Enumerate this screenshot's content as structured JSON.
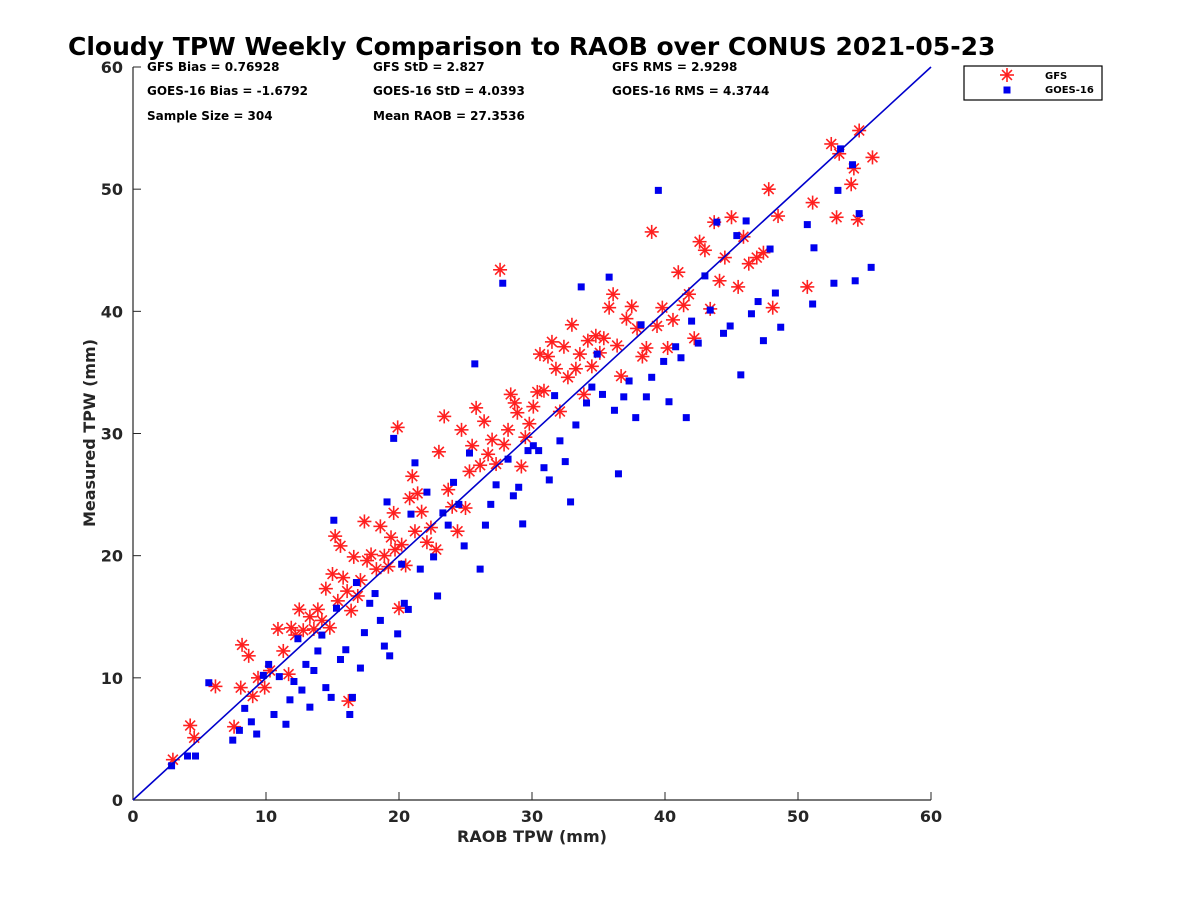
{
  "chart_data": {
    "type": "scatter",
    "title": "Cloudy TPW Weekly Comparison to RAOB over CONUS 2021-05-23",
    "xlabel": "RAOB TPW (mm)",
    "ylabel": "Measured TPW (mm)",
    "xlim": [
      0,
      60
    ],
    "ylim": [
      0,
      60
    ],
    "xticks": [
      "0",
      "10",
      "20",
      "30",
      "40",
      "50",
      "60"
    ],
    "yticks": [
      "0",
      "10",
      "20",
      "30",
      "40",
      "50",
      "60"
    ],
    "grid": false,
    "legend_position": "top-right, outside plot",
    "stats": [
      {
        "text": "GFS Bias = 0.76928"
      },
      {
        "text": "GFS StD = 2.827"
      },
      {
        "text": "GFS RMS = 2.9298"
      },
      {
        "text": "GOES-16 Bias = -1.6792"
      },
      {
        "text": "GOES-16 StD = 4.0393"
      },
      {
        "text": "GOES-16 RMS = 4.3744"
      },
      {
        "text": "Sample Size = 304"
      },
      {
        "text": "Mean RAOB = 27.3536"
      }
    ],
    "reference_line": {
      "x": [
        0,
        60
      ],
      "y": [
        0,
        60
      ],
      "color": "#0000cc"
    },
    "series": [
      {
        "name": "GFS",
        "marker": "asterisk",
        "color": "#ff2020",
        "points": [
          [
            3,
            3.3
          ],
          [
            4.3,
            6.1
          ],
          [
            4.6,
            5.1
          ],
          [
            6.2,
            9.3
          ],
          [
            7.6,
            6
          ],
          [
            8.1,
            9.2
          ],
          [
            8.2,
            12.7
          ],
          [
            8.7,
            11.8
          ],
          [
            9,
            8.5
          ],
          [
            9.4,
            10
          ],
          [
            9.9,
            9.2
          ],
          [
            10.3,
            10.6
          ],
          [
            10.9,
            14
          ],
          [
            11.3,
            12.2
          ],
          [
            11.7,
            10.3
          ],
          [
            11.9,
            14.1
          ],
          [
            12.2,
            13.5
          ],
          [
            12.5,
            15.6
          ],
          [
            12.8,
            13.9
          ],
          [
            13.3,
            15
          ],
          [
            13.6,
            14
          ],
          [
            13.9,
            15.6
          ],
          [
            14.2,
            14.7
          ],
          [
            14.5,
            17.3
          ],
          [
            14.8,
            14.1
          ],
          [
            15,
            18.5
          ],
          [
            15.2,
            21.6
          ],
          [
            15.4,
            16.3
          ],
          [
            15.6,
            20.8
          ],
          [
            15.8,
            18.2
          ],
          [
            16.1,
            17.1
          ],
          [
            16.2,
            8.1
          ],
          [
            16.4,
            15.5
          ],
          [
            16.6,
            19.9
          ],
          [
            16.9,
            16.7
          ],
          [
            17.1,
            18
          ],
          [
            17.4,
            22.8
          ],
          [
            17.6,
            19.6
          ],
          [
            17.9,
            20.1
          ],
          [
            18.3,
            18.9
          ],
          [
            18.6,
            22.4
          ],
          [
            18.9,
            20
          ],
          [
            19.2,
            19.1
          ],
          [
            19.4,
            21.5
          ],
          [
            19.6,
            23.5
          ],
          [
            19.7,
            20.5
          ],
          [
            19.9,
            30.5
          ],
          [
            20,
            15.7
          ],
          [
            20.2,
            20.9
          ],
          [
            20.5,
            19.2
          ],
          [
            20.8,
            24.7
          ],
          [
            21,
            26.5
          ],
          [
            21.2,
            22
          ],
          [
            21.4,
            25.1
          ],
          [
            21.7,
            23.6
          ],
          [
            22.1,
            21.1
          ],
          [
            22.4,
            22.3
          ],
          [
            22.8,
            20.5
          ],
          [
            23,
            28.5
          ],
          [
            23.4,
            31.4
          ],
          [
            23.7,
            25.4
          ],
          [
            24,
            24
          ],
          [
            24.4,
            22
          ],
          [
            24.7,
            30.3
          ],
          [
            25,
            23.9
          ],
          [
            25.3,
            26.9
          ],
          [
            25.5,
            29
          ],
          [
            25.8,
            32.1
          ],
          [
            26.1,
            27.4
          ],
          [
            26.4,
            31
          ],
          [
            26.7,
            28.3
          ],
          [
            27,
            29.5
          ],
          [
            27.3,
            27.5
          ],
          [
            27.6,
            43.4
          ],
          [
            27.9,
            29.1
          ],
          [
            28.2,
            30.3
          ],
          [
            28.4,
            33.2
          ],
          [
            28.7,
            32.5
          ],
          [
            28.9,
            31.7
          ],
          [
            29.2,
            27.3
          ],
          [
            29.5,
            29.7
          ],
          [
            29.8,
            30.8
          ],
          [
            30.1,
            32.2
          ],
          [
            30.4,
            33.4
          ],
          [
            30.6,
            36.5
          ],
          [
            30.9,
            33.5
          ],
          [
            31.2,
            36.3
          ],
          [
            31.5,
            37.5
          ],
          [
            31.8,
            35.3
          ],
          [
            32.1,
            31.8
          ],
          [
            32.4,
            37.1
          ],
          [
            32.7,
            34.6
          ],
          [
            33,
            38.9
          ],
          [
            33.3,
            35.3
          ],
          [
            33.6,
            36.5
          ],
          [
            33.9,
            33.2
          ],
          [
            34.2,
            37.6
          ],
          [
            34.5,
            35.5
          ],
          [
            34.8,
            38
          ],
          [
            35.1,
            36.6
          ],
          [
            35.4,
            37.8
          ],
          [
            35.8,
            40.3
          ],
          [
            36.1,
            41.4
          ],
          [
            36.4,
            37.2
          ],
          [
            36.7,
            34.7
          ],
          [
            37.1,
            39.4
          ],
          [
            37.5,
            40.4
          ],
          [
            37.9,
            38.6
          ],
          [
            38.3,
            36.3
          ],
          [
            38.6,
            37
          ],
          [
            39,
            46.5
          ],
          [
            39.4,
            38.8
          ],
          [
            39.8,
            40.3
          ],
          [
            40.2,
            37
          ],
          [
            40.6,
            39.3
          ],
          [
            41,
            43.2
          ],
          [
            41.4,
            40.5
          ],
          [
            41.8,
            41.4
          ],
          [
            42.2,
            37.8
          ],
          [
            42.6,
            45.7
          ],
          [
            43,
            45
          ],
          [
            43.4,
            40.2
          ],
          [
            43.7,
            47.3
          ],
          [
            44.1,
            42.5
          ],
          [
            44.5,
            44.4
          ],
          [
            45,
            47.7
          ],
          [
            45.5,
            42
          ],
          [
            45.9,
            46.1
          ],
          [
            46.3,
            43.9
          ],
          [
            46.9,
            44.4
          ],
          [
            47.4,
            44.8
          ],
          [
            47.8,
            50
          ],
          [
            48.1,
            40.3
          ],
          [
            48.5,
            47.8
          ],
          [
            50.7,
            42
          ],
          [
            51.1,
            48.9
          ],
          [
            52.5,
            53.7
          ],
          [
            52.9,
            47.7
          ],
          [
            53.1,
            52.9
          ],
          [
            54,
            50.4
          ],
          [
            54.2,
            51.7
          ],
          [
            54.5,
            47.5
          ],
          [
            54.6,
            54.8
          ],
          [
            55.6,
            52.6
          ]
        ]
      },
      {
        "name": "GOES-16",
        "marker": "square",
        "color": "#0000ee",
        "points": [
          [
            2.9,
            2.8
          ],
          [
            4.1,
            3.6
          ],
          [
            4.7,
            3.6
          ],
          [
            5.7,
            9.6
          ],
          [
            7.5,
            4.9
          ],
          [
            8,
            5.7
          ],
          [
            8.4,
            7.5
          ],
          [
            8.9,
            6.4
          ],
          [
            9.3,
            5.4
          ],
          [
            9.8,
            10.2
          ],
          [
            10.2,
            11.1
          ],
          [
            10.6,
            7
          ],
          [
            11,
            10.1
          ],
          [
            11.5,
            6.2
          ],
          [
            11.8,
            8.2
          ],
          [
            12.1,
            9.7
          ],
          [
            12.4,
            13.2
          ],
          [
            12.7,
            9
          ],
          [
            13,
            11.1
          ],
          [
            13.3,
            7.6
          ],
          [
            13.6,
            10.6
          ],
          [
            13.9,
            12.2
          ],
          [
            14.2,
            13.5
          ],
          [
            14.5,
            9.2
          ],
          [
            14.9,
            8.4
          ],
          [
            15.1,
            22.9
          ],
          [
            15.3,
            15.7
          ],
          [
            15.6,
            11.5
          ],
          [
            16,
            12.3
          ],
          [
            16.3,
            7
          ],
          [
            16.5,
            8.4
          ],
          [
            16.8,
            17.8
          ],
          [
            17.1,
            10.8
          ],
          [
            17.4,
            13.7
          ],
          [
            17.8,
            16.1
          ],
          [
            18.2,
            16.9
          ],
          [
            18.6,
            14.7
          ],
          [
            18.9,
            12.6
          ],
          [
            19.1,
            24.4
          ],
          [
            19.3,
            11.8
          ],
          [
            19.6,
            29.6
          ],
          [
            19.9,
            13.6
          ],
          [
            20.2,
            19.3
          ],
          [
            20.4,
            16.1
          ],
          [
            20.7,
            15.6
          ],
          [
            20.9,
            23.4
          ],
          [
            21.2,
            27.6
          ],
          [
            21.6,
            18.9
          ],
          [
            22.1,
            25.2
          ],
          [
            22.6,
            19.9
          ],
          [
            22.9,
            16.7
          ],
          [
            23.3,
            23.5
          ],
          [
            23.7,
            22.5
          ],
          [
            24.1,
            26
          ],
          [
            24.5,
            24.2
          ],
          [
            24.9,
            20.8
          ],
          [
            25.3,
            28.4
          ],
          [
            25.7,
            35.7
          ],
          [
            26.1,
            18.9
          ],
          [
            26.5,
            22.5
          ],
          [
            26.9,
            24.2
          ],
          [
            27.3,
            25.8
          ],
          [
            27.8,
            42.3
          ],
          [
            28.2,
            27.9
          ],
          [
            28.6,
            24.9
          ],
          [
            29,
            25.6
          ],
          [
            29.3,
            22.6
          ],
          [
            29.7,
            28.6
          ],
          [
            30.1,
            29
          ],
          [
            30.5,
            28.6
          ],
          [
            30.9,
            27.2
          ],
          [
            31.3,
            26.2
          ],
          [
            31.7,
            33.1
          ],
          [
            32.1,
            29.4
          ],
          [
            32.5,
            27.7
          ],
          [
            32.9,
            24.4
          ],
          [
            33.3,
            30.7
          ],
          [
            33.7,
            42
          ],
          [
            34.1,
            32.5
          ],
          [
            34.5,
            33.8
          ],
          [
            34.9,
            36.5
          ],
          [
            35.3,
            33.2
          ],
          [
            35.8,
            42.8
          ],
          [
            36.2,
            31.9
          ],
          [
            36.5,
            26.7
          ],
          [
            36.9,
            33
          ],
          [
            37.3,
            34.3
          ],
          [
            37.8,
            31.3
          ],
          [
            38.2,
            38.9
          ],
          [
            38.6,
            33
          ],
          [
            39,
            34.6
          ],
          [
            39.5,
            49.9
          ],
          [
            39.9,
            35.9
          ],
          [
            40.3,
            32.6
          ],
          [
            40.8,
            37.1
          ],
          [
            41.2,
            36.2
          ],
          [
            41.6,
            31.3
          ],
          [
            42,
            39.2
          ],
          [
            42.5,
            37.4
          ],
          [
            43,
            42.9
          ],
          [
            43.4,
            40.1
          ],
          [
            43.9,
            47.3
          ],
          [
            44.4,
            38.2
          ],
          [
            44.9,
            38.8
          ],
          [
            45.4,
            46.2
          ],
          [
            45.7,
            34.8
          ],
          [
            46.1,
            47.4
          ],
          [
            46.5,
            39.8
          ],
          [
            47,
            40.8
          ],
          [
            47.4,
            37.6
          ],
          [
            47.9,
            45.1
          ],
          [
            48.3,
            41.5
          ],
          [
            48.7,
            38.7
          ],
          [
            50.7,
            47.1
          ],
          [
            51.1,
            40.6
          ],
          [
            51.2,
            45.2
          ],
          [
            52.7,
            42.3
          ],
          [
            53,
            49.9
          ],
          [
            53.2,
            53.3
          ],
          [
            54.1,
            52
          ],
          [
            54.3,
            42.5
          ],
          [
            54.6,
            48
          ],
          [
            55.5,
            43.6
          ]
        ]
      }
    ]
  }
}
